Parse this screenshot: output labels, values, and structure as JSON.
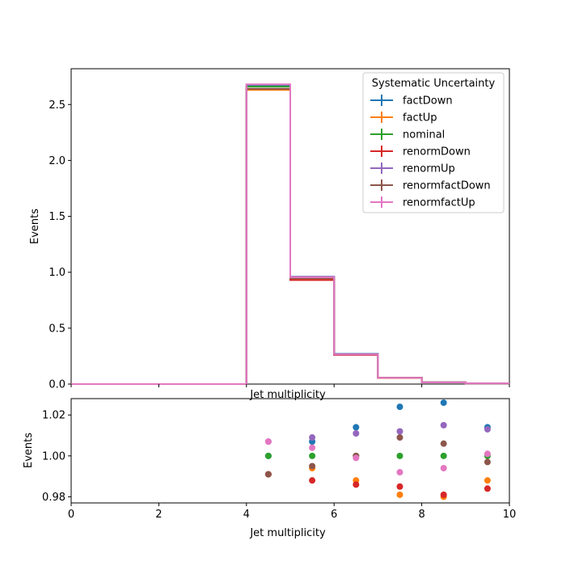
{
  "chart_data": [
    {
      "type": "line",
      "drawstyle": "step",
      "xlabel": "Jet multiplicity",
      "ylabel": "Events",
      "xlim": [
        0,
        10
      ],
      "ylim": [
        0,
        2.82
      ],
      "yticks": [
        "0.0",
        "0.5",
        "1.0",
        "1.5",
        "2.0",
        "2.5"
      ],
      "grid": false,
      "legend": {
        "title": "Systematic Uncertainty",
        "placement": "top-right"
      },
      "bin_edges": [
        0,
        1,
        2,
        3,
        4,
        5,
        6,
        7,
        8,
        9,
        10
      ],
      "series": [
        {
          "name": "factDown",
          "color": "#1f77b4",
          "values": [
            0,
            0,
            0,
            0,
            2.67,
            0.96,
            0.27,
            0.058,
            0.016,
            0.006
          ]
        },
        {
          "name": "factUp",
          "color": "#ff7f0e",
          "values": [
            0,
            0,
            0,
            0,
            2.63,
            0.94,
            0.26,
            0.055,
            0.015,
            0.006
          ]
        },
        {
          "name": "nominal",
          "color": "#2ca02c",
          "values": [
            0,
            0,
            0,
            0,
            2.66,
            0.95,
            0.265,
            0.057,
            0.0155,
            0.006
          ]
        },
        {
          "name": "renormDown",
          "color": "#d62728",
          "values": [
            0,
            0,
            0,
            0,
            2.64,
            0.93,
            0.26,
            0.056,
            0.0152,
            0.006
          ]
        },
        {
          "name": "renormUp",
          "color": "#9467bd",
          "values": [
            0,
            0,
            0,
            0,
            2.68,
            0.96,
            0.268,
            0.058,
            0.0158,
            0.006
          ]
        },
        {
          "name": "renormfactDown",
          "color": "#8c564b",
          "values": [
            0,
            0,
            0,
            0,
            2.64,
            0.945,
            0.265,
            0.058,
            0.0156,
            0.006
          ]
        },
        {
          "name": "renormfactUp",
          "color": "#e377c2",
          "values": [
            0,
            0,
            0,
            0,
            2.68,
            0.955,
            0.265,
            0.056,
            0.0154,
            0.006
          ]
        }
      ]
    },
    {
      "type": "scatter",
      "xlabel": "Jet multiplicity",
      "ylabel": "Events",
      "xlim": [
        0,
        10
      ],
      "ylim": [
        0.977,
        1.028
      ],
      "xticks": [
        "0",
        "2",
        "4",
        "6",
        "8",
        "10"
      ],
      "yticks": [
        "0.98",
        "1.00",
        "1.02"
      ],
      "x": [
        4.5,
        5.5,
        6.5,
        7.5,
        8.5,
        9.5
      ],
      "series": [
        {
          "color": "#1f77b4",
          "values": [
            1.0,
            1.007,
            1.014,
            1.024,
            1.026,
            1.014
          ]
        },
        {
          "color": "#ff7f0e",
          "values": [
            0.991,
            0.994,
            0.988,
            0.981,
            0.98,
            0.988
          ]
        },
        {
          "color": "#2ca02c",
          "values": [
            1.0,
            1.0,
            1.0,
            1.0,
            1.0,
            1.0
          ]
        },
        {
          "color": "#d62728",
          "values": [
            0.991,
            0.988,
            0.986,
            0.985,
            0.981,
            0.984
          ]
        },
        {
          "color": "#9467bd",
          "values": [
            1.007,
            1.009,
            1.011,
            1.012,
            1.015,
            1.013
          ]
        },
        {
          "color": "#8c564b",
          "values": [
            0.991,
            0.995,
            1.0,
            1.009,
            1.006,
            0.997
          ]
        },
        {
          "color": "#e377c2",
          "values": [
            1.007,
            1.004,
            0.999,
            0.992,
            0.994,
            1.001
          ]
        }
      ]
    }
  ]
}
